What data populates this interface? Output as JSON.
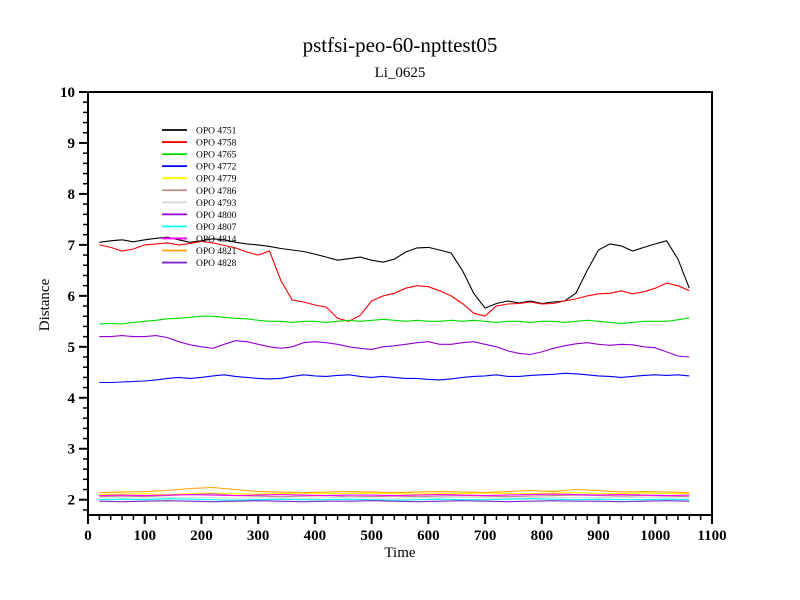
{
  "chart_data": {
    "type": "line",
    "title": "pstfsi-peo-60-npttest05",
    "subtitle": "Li_0625",
    "xlabel": "Time",
    "ylabel": "Distance",
    "xlim": [
      0,
      1100
    ],
    "ylim": [
      1.7,
      10
    ],
    "x_major_ticks": [
      0,
      100,
      200,
      300,
      400,
      500,
      600,
      700,
      800,
      900,
      1000,
      1100
    ],
    "y_major_ticks": [
      2,
      3,
      4,
      5,
      6,
      7,
      8,
      9,
      10
    ],
    "x_minor_step": 20,
    "y_minor_step": 0.2,
    "grid": false,
    "legend_position": "inside-upper-left",
    "frame": "box",
    "x": [
      20,
      40,
      60,
      80,
      100,
      120,
      140,
      160,
      180,
      200,
      220,
      240,
      260,
      280,
      300,
      320,
      340,
      360,
      380,
      400,
      420,
      440,
      460,
      480,
      500,
      520,
      540,
      560,
      580,
      600,
      620,
      640,
      660,
      680,
      700,
      720,
      740,
      760,
      780,
      800,
      820,
      840,
      860,
      880,
      900,
      920,
      940,
      960,
      980,
      1000,
      1020,
      1040,
      1060
    ],
    "x2": [
      20,
      60,
      100,
      140,
      180,
      220,
      260,
      300,
      340,
      380,
      420,
      460,
      500,
      540,
      580,
      620,
      660,
      700,
      740,
      780,
      820,
      860,
      900,
      940,
      980,
      1020,
      1060
    ],
    "series": [
      {
        "name": "OPO 4751",
        "color": "#000000",
        "xref": "x",
        "y": [
          7.05,
          7.08,
          7.1,
          7.06,
          7.1,
          7.13,
          7.15,
          7.1,
          7.05,
          7.08,
          7.12,
          7.1,
          7.05,
          7.02,
          7.0,
          6.97,
          6.93,
          6.9,
          6.87,
          6.82,
          6.76,
          6.7,
          6.73,
          6.76,
          6.7,
          6.66,
          6.72,
          6.86,
          6.94,
          6.95,
          6.9,
          6.84,
          6.5,
          6.05,
          5.76,
          5.85,
          5.9,
          5.86,
          5.9,
          5.85,
          5.88,
          5.9,
          6.05,
          6.5,
          6.9,
          7.02,
          6.98,
          6.88,
          6.95,
          7.02,
          7.08,
          6.72,
          6.15
        ]
      },
      {
        "name": "OPO 4758",
        "color": "#ff0000",
        "xref": "x",
        "y": [
          7.0,
          6.95,
          6.88,
          6.92,
          7.0,
          7.02,
          7.04,
          7.0,
          7.03,
          7.07,
          7.04,
          6.99,
          6.94,
          6.86,
          6.8,
          6.88,
          6.3,
          5.92,
          5.88,
          5.82,
          5.78,
          5.56,
          5.5,
          5.62,
          5.9,
          6.0,
          6.05,
          6.15,
          6.2,
          6.18,
          6.1,
          6.0,
          5.85,
          5.66,
          5.6,
          5.8,
          5.84,
          5.85,
          5.88,
          5.84,
          5.85,
          5.9,
          5.94,
          6.0,
          6.04,
          6.05,
          6.1,
          6.04,
          6.08,
          6.15,
          6.25,
          6.2,
          6.1
        ]
      },
      {
        "name": "OPO 4765",
        "color": "#00dd00",
        "xref": "x",
        "y": [
          5.45,
          5.46,
          5.45,
          5.48,
          5.5,
          5.52,
          5.55,
          5.56,
          5.58,
          5.6,
          5.6,
          5.58,
          5.56,
          5.55,
          5.52,
          5.5,
          5.5,
          5.48,
          5.5,
          5.5,
          5.48,
          5.5,
          5.52,
          5.5,
          5.52,
          5.54,
          5.52,
          5.5,
          5.52,
          5.5,
          5.5,
          5.52,
          5.5,
          5.52,
          5.5,
          5.48,
          5.5,
          5.5,
          5.48,
          5.5,
          5.5,
          5.48,
          5.5,
          5.52,
          5.5,
          5.48,
          5.46,
          5.48,
          5.5,
          5.5,
          5.5,
          5.53,
          5.57
        ]
      },
      {
        "name": "OPO 4772",
        "color": "#0000ff",
        "xref": "x",
        "y": [
          4.3,
          4.3,
          4.31,
          4.32,
          4.33,
          4.35,
          4.38,
          4.4,
          4.38,
          4.4,
          4.43,
          4.45,
          4.42,
          4.4,
          4.38,
          4.37,
          4.38,
          4.42,
          4.45,
          4.43,
          4.42,
          4.44,
          4.45,
          4.42,
          4.4,
          4.42,
          4.4,
          4.38,
          4.38,
          4.36,
          4.35,
          4.37,
          4.4,
          4.42,
          4.43,
          4.45,
          4.42,
          4.42,
          4.44,
          4.45,
          4.46,
          4.48,
          4.47,
          4.45,
          4.43,
          4.42,
          4.4,
          4.42,
          4.44,
          4.45,
          4.44,
          4.45,
          4.43
        ]
      },
      {
        "name": "OPO 4779",
        "color": "#ffff00",
        "xref": "x2",
        "y": [
          2.1,
          2.11,
          2.12,
          2.1,
          2.12,
          2.13,
          2.12,
          2.11,
          2.12,
          2.13,
          2.12,
          2.12,
          2.13,
          2.12,
          2.11,
          2.12,
          2.12,
          2.13,
          2.12,
          2.12,
          2.13,
          2.14,
          2.12,
          2.12,
          2.13,
          2.12,
          2.12
        ]
      },
      {
        "name": "OPO 4786",
        "color": "#bc8f8f",
        "xref": "x2",
        "y": [
          2.06,
          2.07,
          2.06,
          2.08,
          2.1,
          2.12,
          2.08,
          2.07,
          2.06,
          2.07,
          2.08,
          2.06,
          2.06,
          2.07,
          2.06,
          2.07,
          2.08,
          2.07,
          2.06,
          2.07,
          2.08,
          2.09,
          2.08,
          2.07,
          2.08,
          2.07,
          2.06
        ]
      },
      {
        "name": "OPO 4793",
        "color": "#dcdcdc",
        "xref": "x2",
        "y": [
          2.03,
          2.04,
          2.03,
          2.04,
          2.05,
          2.04,
          2.03,
          2.04,
          2.04,
          2.03,
          2.04,
          2.05,
          2.04,
          2.03,
          2.04,
          2.04,
          2.05,
          2.04,
          2.03,
          2.04,
          2.05,
          2.04,
          2.04,
          2.05,
          2.04,
          2.04,
          2.03
        ]
      },
      {
        "name": "OPO 4800",
        "color": "#9400d3",
        "xref": "x",
        "y": [
          5.2,
          5.2,
          5.22,
          5.2,
          5.2,
          5.22,
          5.18,
          5.1,
          5.04,
          5.0,
          4.97,
          5.05,
          5.12,
          5.1,
          5.05,
          5.0,
          4.97,
          5.0,
          5.08,
          5.1,
          5.08,
          5.05,
          5.0,
          4.97,
          4.95,
          5.0,
          5.02,
          5.05,
          5.08,
          5.1,
          5.05,
          5.05,
          5.08,
          5.1,
          5.05,
          5.0,
          4.92,
          4.87,
          4.85,
          4.9,
          4.97,
          5.02,
          5.06,
          5.08,
          5.05,
          5.03,
          5.05,
          5.04,
          5.0,
          4.98,
          4.9,
          4.82,
          4.8
        ]
      },
      {
        "name": "OPO 4807",
        "color": "#00ffff",
        "xref": "x2",
        "y": [
          2.0,
          2.01,
          2.0,
          2.02,
          2.01,
          2.0,
          1.99,
          2.0,
          2.01,
          2.0,
          2.0,
          2.01,
          2.0,
          1.99,
          2.0,
          2.01,
          2.0,
          2.0,
          2.01,
          2.02,
          2.01,
          2.0,
          2.01,
          2.0,
          2.0,
          2.01,
          2.0
        ]
      },
      {
        "name": "OPO 4814",
        "color": "#ff00ff",
        "xref": "x2",
        "y": [
          2.08,
          2.09,
          2.08,
          2.09,
          2.1,
          2.09,
          2.08,
          2.09,
          2.1,
          2.09,
          2.08,
          2.09,
          2.09,
          2.08,
          2.09,
          2.1,
          2.09,
          2.08,
          2.09,
          2.1,
          2.11,
          2.1,
          2.09,
          2.1,
          2.09,
          2.08,
          2.09
        ]
      },
      {
        "name": "OPO 4821",
        "color": "#ffa500",
        "xref": "x2",
        "y": [
          2.14,
          2.15,
          2.16,
          2.18,
          2.22,
          2.24,
          2.2,
          2.16,
          2.15,
          2.14,
          2.15,
          2.16,
          2.15,
          2.14,
          2.15,
          2.16,
          2.15,
          2.14,
          2.16,
          2.18,
          2.16,
          2.2,
          2.18,
          2.15,
          2.16,
          2.15,
          2.14
        ]
      },
      {
        "name": "OPO 4828",
        "color": "#7d26cd",
        "xref": "x2",
        "y": [
          1.97,
          1.96,
          1.97,
          1.98,
          1.97,
          1.96,
          1.97,
          1.98,
          1.97,
          1.96,
          1.97,
          1.97,
          1.98,
          1.97,
          1.96,
          1.97,
          1.98,
          1.97,
          1.96,
          1.97,
          1.98,
          1.97,
          1.97,
          1.96,
          1.97,
          1.98,
          1.97
        ]
      }
    ]
  }
}
